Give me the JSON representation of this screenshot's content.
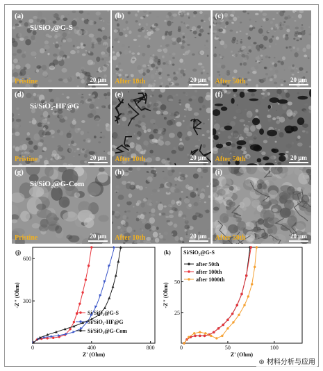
{
  "sem_panels": [
    {
      "label": "(a)",
      "title": "Si/SiO₂@G-S",
      "condition": "Pristine",
      "scale": "20 μm",
      "tone": "#8a8a8a",
      "style": "rough"
    },
    {
      "label": "(b)",
      "title": "",
      "condition": "After 10th",
      "scale": "20 μm",
      "tone": "#8e8e8e",
      "style": "smooth"
    },
    {
      "label": "(c)",
      "title": "",
      "condition": "After 50th",
      "scale": "20 μm",
      "tone": "#8c8c8c",
      "style": "smooth"
    },
    {
      "label": "(d)",
      "title": "Si/SiO₂-HF@G",
      "condition": "Pristine",
      "scale": "20 μm",
      "tone": "#868686",
      "style": "rough"
    },
    {
      "label": "(e)",
      "title": "",
      "condition": "After 10th",
      "scale": "20 μm",
      "tone": "#7a7a7a",
      "style": "cracked"
    },
    {
      "label": "(f)",
      "title": "",
      "condition": "After 50th",
      "scale": "20 μm",
      "tone": "#6e6e6e",
      "style": "porous"
    },
    {
      "label": "(g)",
      "title": "Si/SiO₂@G-Com",
      "condition": "Pristine",
      "scale": "20 μm",
      "tone": "#969696",
      "style": "blobs"
    },
    {
      "label": "(h)",
      "title": "",
      "condition": "After 10th",
      "scale": "20 μm",
      "tone": "#858585",
      "style": "grainy"
    },
    {
      "label": "(i)",
      "title": "",
      "condition": "After 50th",
      "scale": "20 μm",
      "tone": "#9a9a9a",
      "style": "plates"
    }
  ],
  "chart_data": [
    {
      "panel": "(j)",
      "type": "scatter",
      "xlabel": "Z' (Ohm)",
      "ylabel": "-Z'' (Ohm)",
      "xlim": [
        0,
        830
      ],
      "ylim": [
        0,
        680
      ],
      "xticks": [
        0,
        400,
        800
      ],
      "yticks": [
        300,
        600
      ],
      "legend_position": "center-right",
      "series": [
        {
          "name": "Si/SiO₂@G-S",
          "color": "#e8333a",
          "marker": "circle",
          "x": [
            5,
            30,
            60,
            100,
            140,
            180,
            220,
            255,
            280,
            300,
            320,
            340,
            360,
            380,
            400
          ],
          "y": [
            5,
            25,
            32,
            35,
            38,
            45,
            60,
            100,
            150,
            210,
            280,
            360,
            450,
            550,
            680
          ]
        },
        {
          "name": "Si/SiO₂-HF@G",
          "color": "#3a56c8",
          "marker": "triangle-right",
          "x": [
            5,
            40,
            80,
            130,
            180,
            230,
            280,
            330,
            370,
            400,
            430,
            460,
            490,
            520,
            555
          ],
          "y": [
            5,
            30,
            42,
            48,
            55,
            65,
            80,
            105,
            150,
            200,
            260,
            340,
            440,
            550,
            680
          ]
        },
        {
          "name": "Si/SiO₂@G-Com",
          "color": "#222222",
          "marker": "triangle-up",
          "x": [
            5,
            50,
            100,
            160,
            220,
            280,
            340,
            400,
            450,
            490,
            520,
            545,
            565,
            582,
            598
          ],
          "y": [
            5,
            40,
            60,
            80,
            100,
            120,
            145,
            170,
            200,
            250,
            320,
            400,
            480,
            580,
            680
          ]
        }
      ]
    },
    {
      "panel": "(k)",
      "type": "scatter",
      "title": "Si/SiO₂@G-S",
      "xlabel": "Z' (Ohm)",
      "ylabel": "-Z'' (Ohm)",
      "xlim": [
        0,
        130
      ],
      "ylim": [
        0,
        78
      ],
      "xticks": [
        0,
        50,
        100
      ],
      "yticks": [
        25,
        50
      ],
      "legend_position": "top-left",
      "series": [
        {
          "name": "after 50th",
          "color": "#1a1a1a",
          "marker": "circle",
          "x": [
            3,
            6,
            10,
            15,
            20,
            25,
            30,
            35,
            40,
            45,
            50,
            55,
            60,
            65,
            70,
            74
          ],
          "y": [
            0,
            3,
            5,
            6,
            6,
            6,
            7,
            9,
            12,
            15,
            19,
            24,
            31,
            40,
            55,
            78
          ]
        },
        {
          "name": "after 100th",
          "color": "#e8333a",
          "marker": "circle",
          "x": [
            3,
            6,
            10,
            15,
            20,
            25,
            30,
            35,
            40,
            45,
            50,
            55,
            60,
            65,
            70,
            75
          ],
          "y": [
            0,
            3,
            5,
            6,
            6,
            6,
            7,
            9,
            12,
            15,
            19,
            24,
            31,
            40,
            55,
            78
          ]
        },
        {
          "name": "after 1000th",
          "color": "#f5a030",
          "marker": "circle",
          "x": [
            3,
            8,
            14,
            20,
            26,
            32,
            38,
            44,
            50,
            56,
            62,
            68,
            72,
            76,
            79,
            81
          ],
          "y": [
            0,
            5,
            8,
            9,
            8,
            6,
            4,
            6,
            12,
            17,
            23,
            31,
            38,
            48,
            62,
            78
          ]
        }
      ]
    }
  ],
  "watermark": "材料分析与应用"
}
